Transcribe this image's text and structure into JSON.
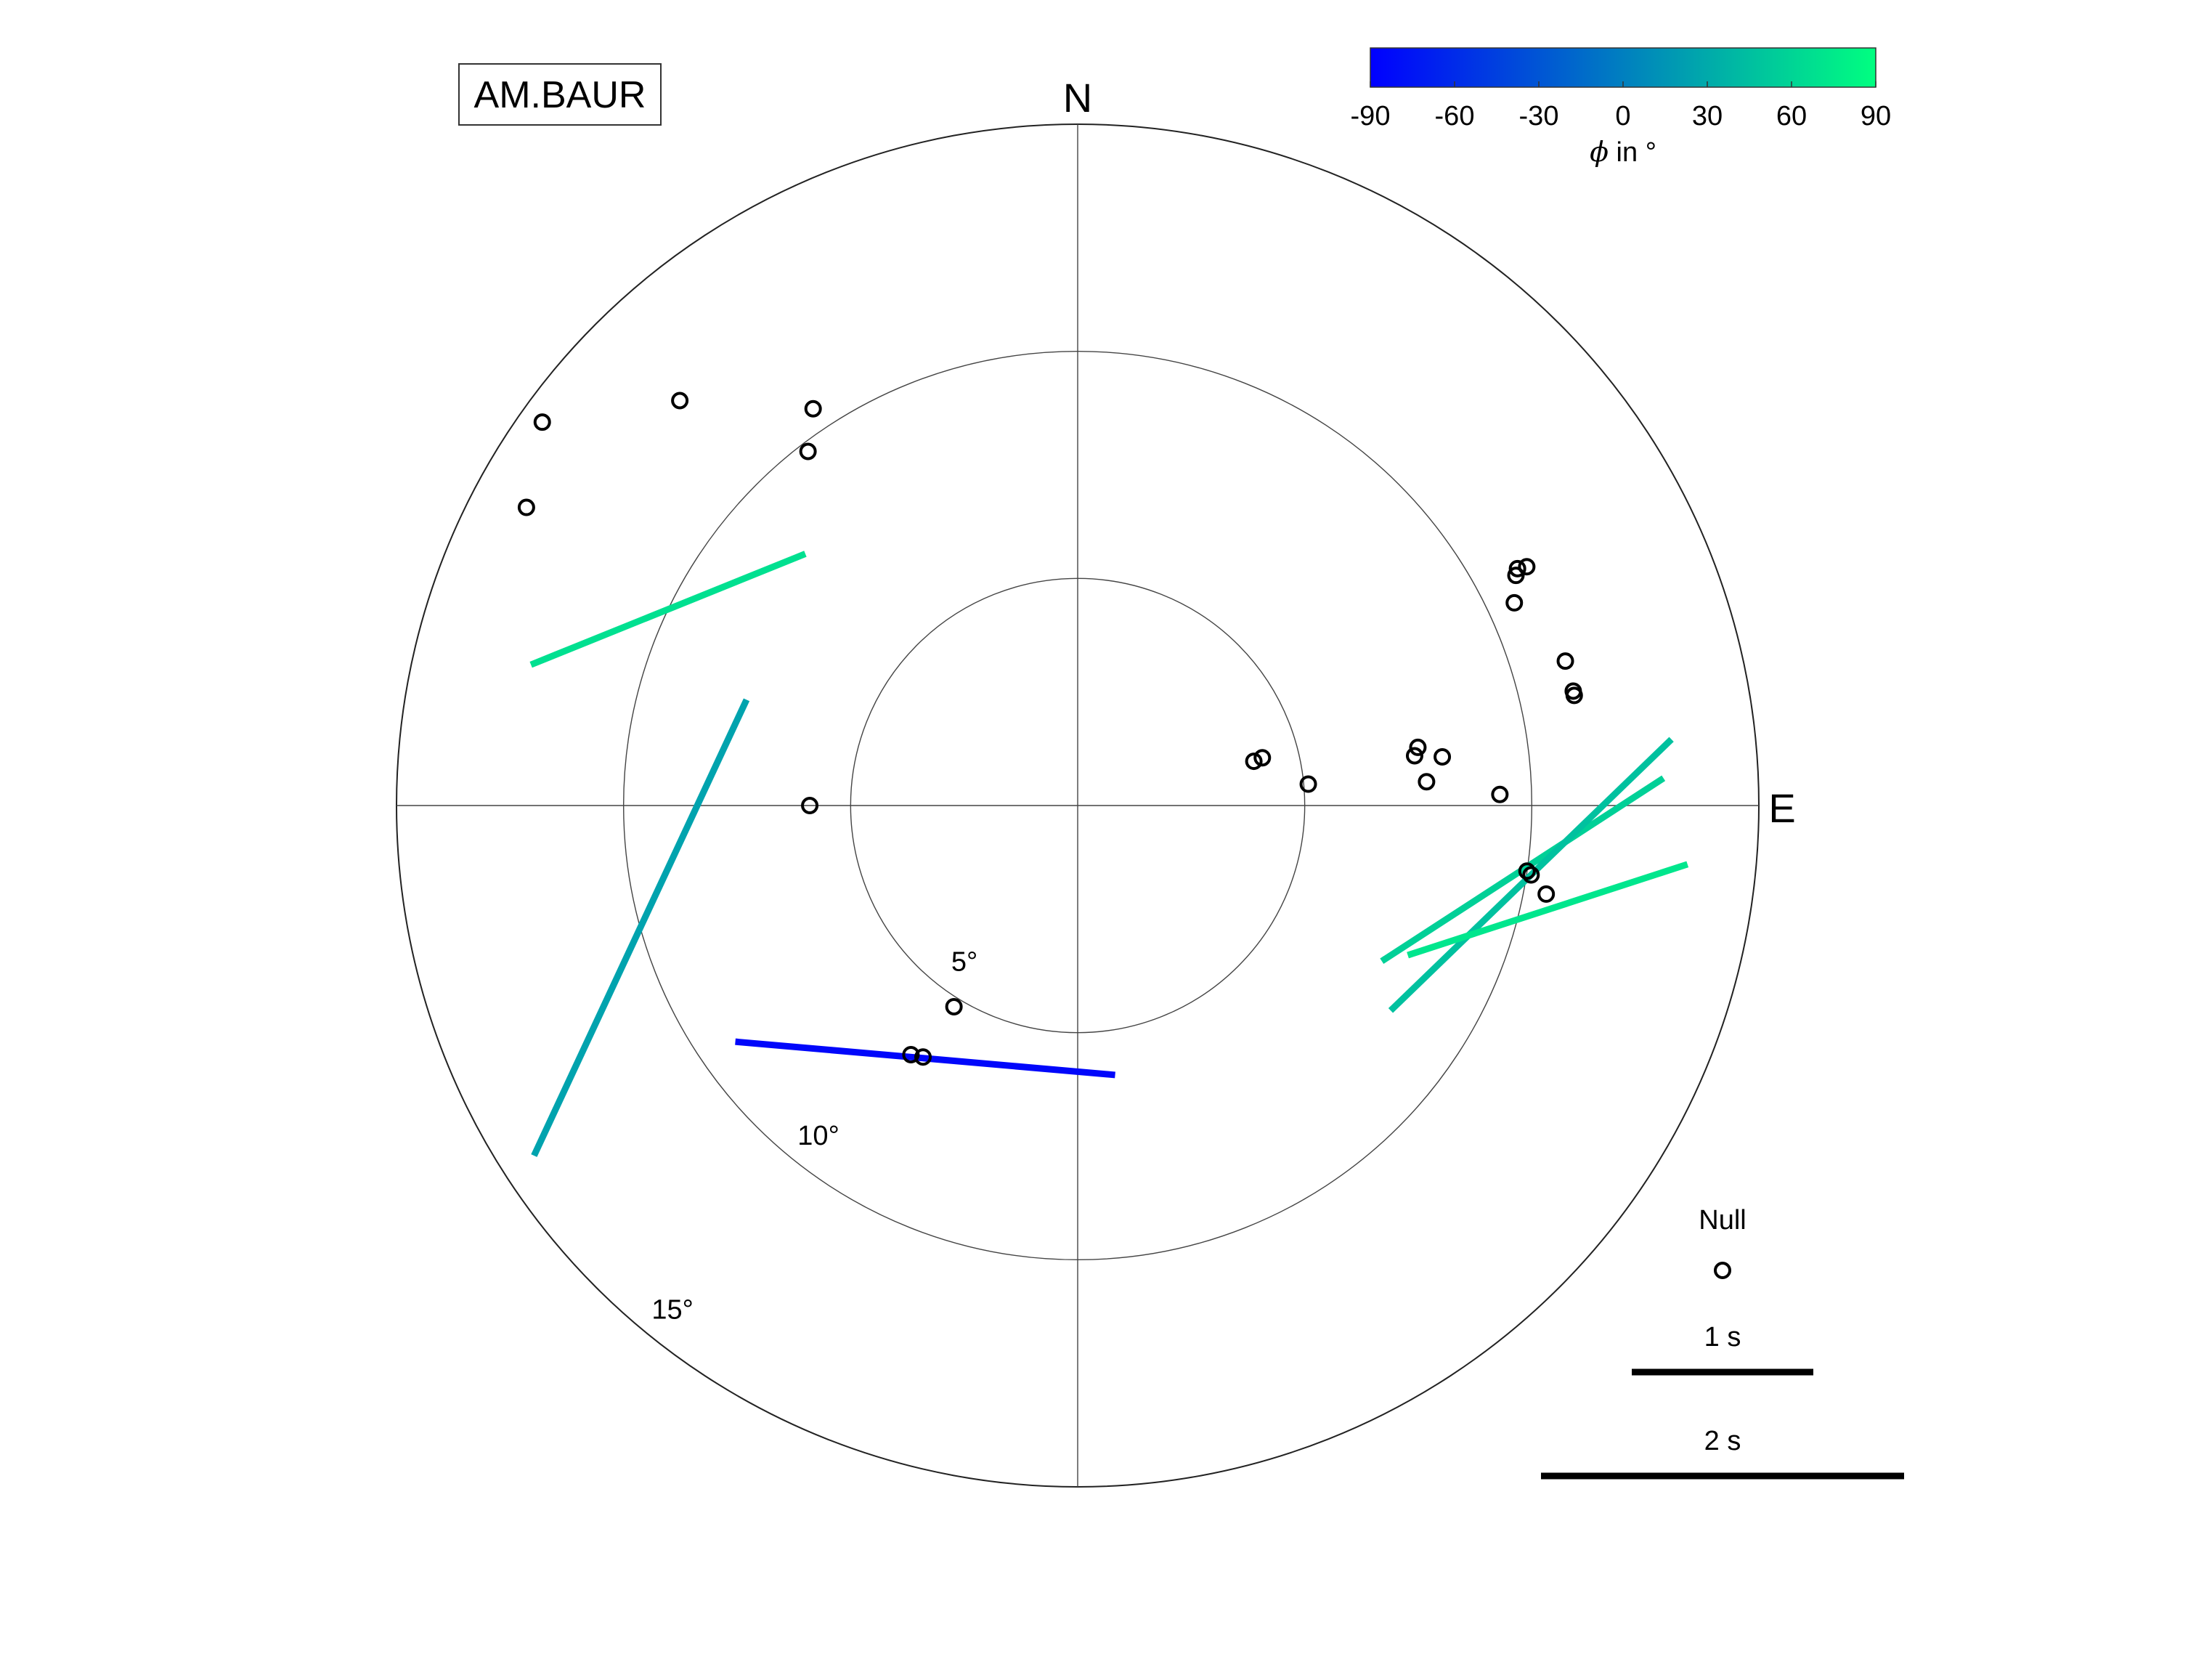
{
  "chart_data": {
    "type": "scatter",
    "title": "AM.BAUR",
    "plot_kind": "polar stereoplot (backazimuth vs. incidence)",
    "direction_labels": {
      "north": "N",
      "east": "E"
    },
    "radial_axis": {
      "unit": "°",
      "max": 15,
      "rings": [
        5,
        10,
        15
      ],
      "ring_labels": [
        "5°",
        "10°",
        "15°"
      ]
    },
    "colorbar": {
      "label": "ϕ in °",
      "symbol": "ϕ",
      "suffix": " in °",
      "range": [
        -90,
        90
      ],
      "ticks": [
        -90,
        -60,
        -30,
        0,
        30,
        60,
        90
      ],
      "tick_labels": [
        "-90",
        "-60",
        "-30",
        "0",
        "30",
        "60",
        "90"
      ],
      "colors": [
        "#0000ff",
        "#00ff80"
      ]
    },
    "legend": {
      "null_label": "Null",
      "scale_items": [
        {
          "label": "1 s",
          "dt": 1
        },
        {
          "label": "2 s",
          "dt": 2
        }
      ]
    },
    "null_measurements": [
      {
        "baz": 326.3,
        "inc": 10.5
      },
      {
        "baz": 322.7,
        "inc": 9.8
      },
      {
        "baz": 315.5,
        "inc": 12.5
      },
      {
        "baz": 305.6,
        "inc": 14.5
      },
      {
        "baz": 298.4,
        "inc": 13.8
      },
      {
        "baz": 270.0,
        "inc": 5.9
      },
      {
        "baz": 211.6,
        "inc": 5.2
      },
      {
        "baz": 211.6,
        "inc": 6.5
      },
      {
        "baz": 213.8,
        "inc": 6.6
      },
      {
        "baz": 75.9,
        "inc": 4.0
      },
      {
        "baz": 75.5,
        "inc": 4.2
      },
      {
        "baz": 84.7,
        "inc": 5.1
      },
      {
        "baz": 80.3,
        "inc": 7.6
      },
      {
        "baz": 81.6,
        "inc": 7.5
      },
      {
        "baz": 86.1,
        "inc": 7.7
      },
      {
        "baz": 82.4,
        "inc": 8.1
      },
      {
        "baz": 88.5,
        "inc": 9.3
      },
      {
        "baz": 62.3,
        "inc": 10.9
      },
      {
        "baz": 61.7,
        "inc": 11.0
      },
      {
        "baz": 62.0,
        "inc": 11.2
      },
      {
        "baz": 65.1,
        "inc": 10.6
      },
      {
        "baz": 77.0,
        "inc": 11.2
      },
      {
        "baz": 77.5,
        "inc": 11.2
      },
      {
        "baz": 73.5,
        "inc": 11.2
      },
      {
        "baz": 98.3,
        "inc": 10.0
      },
      {
        "baz": 98.7,
        "inc": 10.1
      },
      {
        "baz": 100.7,
        "inc": 10.5
      }
    ],
    "split_measurements": [
      {
        "baz": 295.6,
        "inc": 10.0,
        "phi": 68,
        "dt": 1.63
      },
      {
        "baz": 254.4,
        "inc": 10.0,
        "phi": 25,
        "dt": 2.77
      },
      {
        "baz": 211.1,
        "inc": 6.5,
        "phi": -85,
        "dt": 2.1
      },
      {
        "baz": 98.2,
        "inc": 9.9,
        "phi": 57,
        "dt": 1.85
      },
      {
        "baz": 98.7,
        "inc": 10.1,
        "phi": 46,
        "dt": 2.15
      },
      {
        "baz": 102.5,
        "inc": 10.6,
        "phi": 72,
        "dt": 1.62
      }
    ]
  }
}
